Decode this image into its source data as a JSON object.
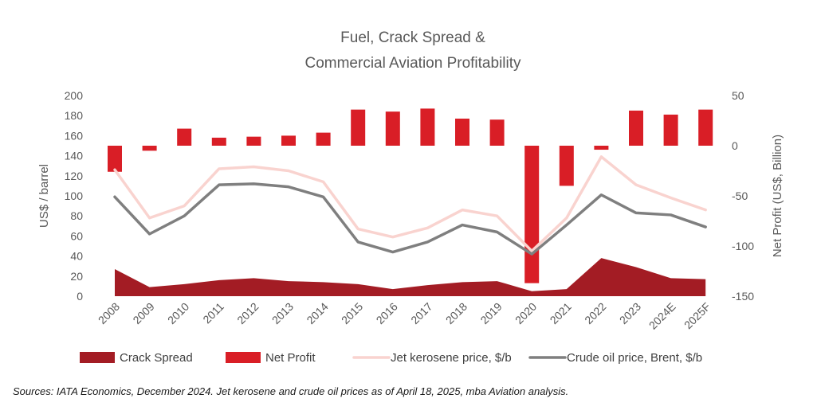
{
  "chart_data": {
    "type": "bar+line+area",
    "title_lines": [
      "Fuel, Crack Spread &",
      "Commercial Aviation Profitability"
    ],
    "ylabel": "US$ / barrel",
    "y2label": "Net Profit (US$, Billion)",
    "ylim": [
      0,
      200
    ],
    "y2lim": [
      -150,
      50
    ],
    "yticks": [
      0,
      20,
      40,
      60,
      80,
      100,
      120,
      140,
      160,
      180,
      200
    ],
    "y2ticks": [
      -150,
      -100,
      -50,
      0,
      50
    ],
    "categories": [
      "2008",
      "2009",
      "2010",
      "2011",
      "2012",
      "2013",
      "2014",
      "2015",
      "2016",
      "2017",
      "2018",
      "2019",
      "2020",
      "2021",
      "2022",
      "2023",
      "2024E",
      "2025F"
    ],
    "grid": false,
    "legend_position": "bottom",
    "series": [
      {
        "name": "Crack Spread",
        "type": "area",
        "axis": "left",
        "color": "#a31c24",
        "values": [
          27,
          9,
          12,
          16,
          18,
          15,
          14,
          12,
          7,
          11,
          14,
          15,
          5,
          7,
          38,
          29,
          18,
          17
        ]
      },
      {
        "name": "Net Profit",
        "type": "bar",
        "axis": "right",
        "color": "#d91e26",
        "values": [
          -26,
          -5,
          17,
          8,
          9,
          10,
          13,
          36,
          34,
          37,
          27,
          26,
          -137,
          -40,
          -4,
          35,
          31,
          36
        ]
      },
      {
        "name": "Jet kerosene price, $/b",
        "type": "line",
        "axis": "left",
        "color": "#f9d3cf",
        "values": [
          126,
          78,
          90,
          127,
          129,
          125,
          114,
          67,
          59,
          68,
          86,
          80,
          45,
          78,
          139,
          111,
          98,
          86
        ]
      },
      {
        "name": "Crude oil price, Brent, $/b",
        "type": "line",
        "axis": "left",
        "color": "#7f7f7f",
        "values": [
          99,
          62,
          80,
          111,
          112,
          109,
          99,
          54,
          44,
          54,
          71,
          64,
          42,
          71,
          101,
          83,
          81,
          69
        ]
      }
    ]
  },
  "source_note": "Sources: IATA Economics, December 2024.  Jet kerosene and crude oil prices as of April 18, 2025, mba Aviation analysis."
}
